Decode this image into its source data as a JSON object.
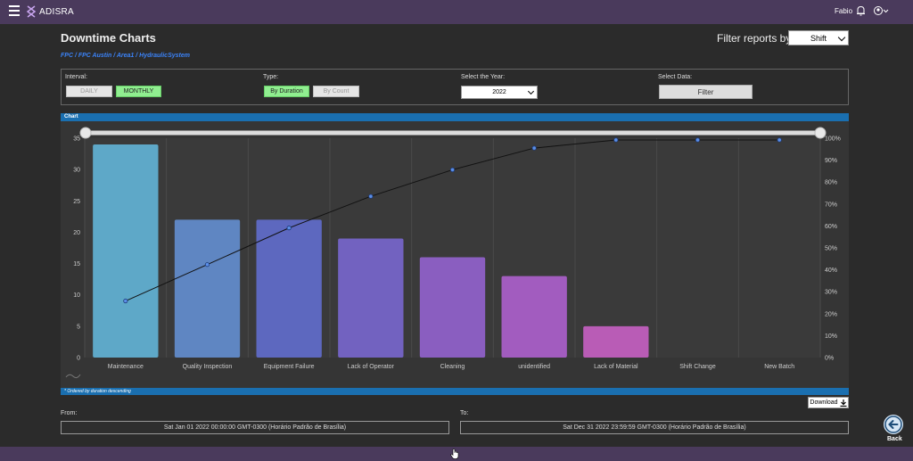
{
  "app": {
    "title": "ADISRA",
    "user": "Fabio"
  },
  "page": {
    "title": "Downtime Charts",
    "breadcrumb": "FPC / FPC Austin / Area1 / HydraulicSystem"
  },
  "filter_reports": {
    "label": "Filter reports by:",
    "value": "Shift"
  },
  "controls": {
    "interval_label": "Interval:",
    "daily_label": "DAILY",
    "monthly_label": "MONTHLY",
    "type_label": "Type:",
    "by_duration_label": "By Duration",
    "by_count_label": "By Count",
    "year_label": "Select the Year:",
    "year_value": "2022",
    "data_label": "Select Data:",
    "filter_button": "Filter"
  },
  "chart_header": "Chart",
  "chart_footer": "* Ordered by duration descending",
  "chart_data": {
    "type": "bar",
    "categories": [
      "Maintenance",
      "Quality Inspection",
      "Equipment Failure",
      "Lack of Operator",
      "Cleaning",
      "unidentified",
      "Lack of Material",
      "Shift Change",
      "New Batch"
    ],
    "values": [
      34,
      22,
      22,
      19,
      16,
      13,
      5,
      0,
      0
    ],
    "cumulative_percent": [
      25.8,
      42.4,
      59.1,
      73.5,
      85.6,
      95.5,
      99.2,
      99.2,
      99.2
    ],
    "ylim": [
      0,
      35
    ],
    "y_ticks": [
      "0",
      "5",
      "10",
      "15",
      "20",
      "25",
      "30",
      "35"
    ],
    "y2_ticks": [
      "0%",
      "10%",
      "20%",
      "30%",
      "40%",
      "50%",
      "60%",
      "70%",
      "80%",
      "90%",
      "100%"
    ],
    "bar_colors": [
      "#5ea8c8",
      "#5f86c2",
      "#5d68bf",
      "#7262c0",
      "#8a5ec0",
      "#a25cbf",
      "#b95cb6",
      "#c05bb0",
      "#c05bb0"
    ],
    "grid": true
  },
  "download_label": "Download",
  "range": {
    "from_label": "From:",
    "from_value": "Sat Jan 01 2022 00:00:00 GMT-0300 (Horário Padrão de Brasília)",
    "to_label": "To:",
    "to_value": "Sat Dec 31 2022 23:59:59 GMT-0300 (Horário Padrão de Brasília)"
  },
  "back_label": "Back"
}
